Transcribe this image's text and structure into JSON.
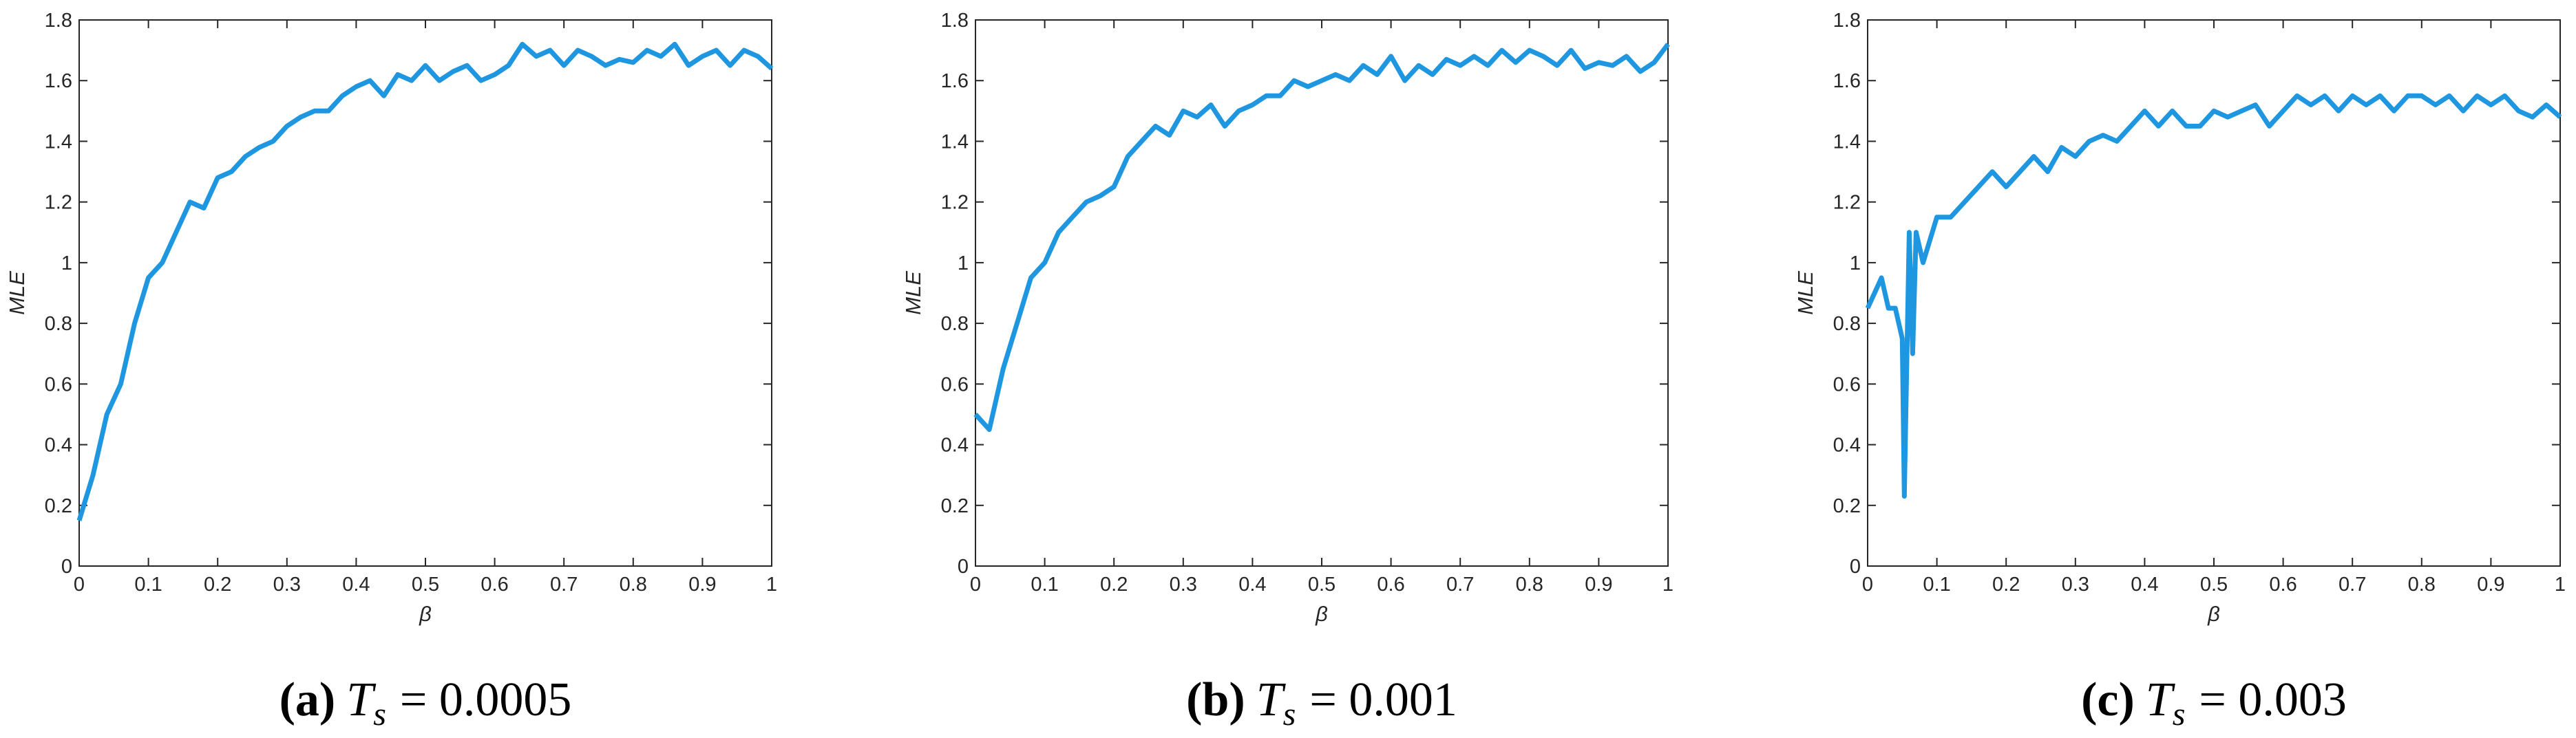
{
  "chart_data": [
    {
      "type": "line",
      "xlabel": "β",
      "ylabel": "MLE",
      "caption_label": "(a)",
      "caption_symbol": "T",
      "caption_subscript": "s",
      "caption_rest": "= 0.0005",
      "color": "#1f96e0",
      "x": [
        0,
        0.02,
        0.04,
        0.06,
        0.08,
        0.1,
        0.12,
        0.14,
        0.16,
        0.18,
        0.2,
        0.22,
        0.24,
        0.26,
        0.28,
        0.3,
        0.32,
        0.34,
        0.36,
        0.38,
        0.4,
        0.42,
        0.44,
        0.46,
        0.48,
        0.5,
        0.52,
        0.54,
        0.56,
        0.58,
        0.6,
        0.62,
        0.64,
        0.66,
        0.68,
        0.7,
        0.72,
        0.74,
        0.76,
        0.78,
        0.8,
        0.82,
        0.84,
        0.86,
        0.88,
        0.9,
        0.92,
        0.94,
        0.96,
        0.98,
        1
      ],
      "values": [
        0.15,
        0.3,
        0.5,
        0.6,
        0.8,
        0.95,
        1.0,
        1.1,
        1.2,
        1.18,
        1.28,
        1.3,
        1.35,
        1.38,
        1.4,
        1.45,
        1.48,
        1.5,
        1.5,
        1.55,
        1.58,
        1.6,
        1.55,
        1.62,
        1.6,
        1.65,
        1.6,
        1.63,
        1.65,
        1.6,
        1.62,
        1.65,
        1.72,
        1.68,
        1.7,
        1.65,
        1.7,
        1.68,
        1.65,
        1.67,
        1.66,
        1.7,
        1.68,
        1.72,
        1.65,
        1.68,
        1.7,
        1.65,
        1.7,
        1.68,
        1.64
      ],
      "xlim": [
        0,
        1
      ],
      "xticks": [
        0,
        0.1,
        0.2,
        0.3,
        0.4,
        0.5,
        0.6,
        0.7,
        0.8,
        0.9,
        1
      ],
      "ylim": [
        0,
        1.8
      ],
      "yticks": [
        0,
        0.2,
        0.4,
        0.6,
        0.8,
        1,
        1.2,
        1.4,
        1.6,
        1.8
      ]
    },
    {
      "type": "line",
      "xlabel": "β",
      "ylabel": "MLE",
      "caption_label": "(b)",
      "caption_symbol": "T",
      "caption_subscript": "s",
      "caption_rest": "= 0.001",
      "color": "#1f96e0",
      "x": [
        0,
        0.02,
        0.04,
        0.06,
        0.08,
        0.1,
        0.12,
        0.14,
        0.16,
        0.18,
        0.2,
        0.22,
        0.24,
        0.26,
        0.28,
        0.3,
        0.32,
        0.34,
        0.36,
        0.38,
        0.4,
        0.42,
        0.44,
        0.46,
        0.48,
        0.5,
        0.52,
        0.54,
        0.56,
        0.58,
        0.6,
        0.62,
        0.64,
        0.66,
        0.68,
        0.7,
        0.72,
        0.74,
        0.76,
        0.78,
        0.8,
        0.82,
        0.84,
        0.86,
        0.88,
        0.9,
        0.92,
        0.94,
        0.96,
        0.98,
        1
      ],
      "values": [
        0.5,
        0.45,
        0.65,
        0.8,
        0.95,
        1.0,
        1.1,
        1.15,
        1.2,
        1.22,
        1.25,
        1.35,
        1.4,
        1.45,
        1.42,
        1.5,
        1.48,
        1.52,
        1.45,
        1.5,
        1.52,
        1.55,
        1.55,
        1.6,
        1.58,
        1.6,
        1.62,
        1.6,
        1.65,
        1.62,
        1.68,
        1.6,
        1.65,
        1.62,
        1.67,
        1.65,
        1.68,
        1.65,
        1.7,
        1.66,
        1.7,
        1.68,
        1.65,
        1.7,
        1.64,
        1.66,
        1.65,
        1.68,
        1.63,
        1.66,
        1.72
      ],
      "xlim": [
        0,
        1
      ],
      "xticks": [
        0,
        0.1,
        0.2,
        0.3,
        0.4,
        0.5,
        0.6,
        0.7,
        0.8,
        0.9,
        1
      ],
      "ylim": [
        0,
        1.8
      ],
      "yticks": [
        0,
        0.2,
        0.4,
        0.6,
        0.8,
        1,
        1.2,
        1.4,
        1.6,
        1.8
      ]
    },
    {
      "type": "line",
      "xlabel": "β",
      "ylabel": "MLE",
      "caption_label": "(c)",
      "caption_symbol": "T",
      "caption_subscript": "s",
      "caption_rest": "= 0.003",
      "color": "#1f96e0",
      "x": [
        0,
        0.01,
        0.02,
        0.03,
        0.04,
        0.05,
        0.053,
        0.06,
        0.065,
        0.07,
        0.08,
        0.1,
        0.12,
        0.14,
        0.16,
        0.18,
        0.2,
        0.22,
        0.24,
        0.26,
        0.28,
        0.3,
        0.32,
        0.34,
        0.36,
        0.38,
        0.4,
        0.42,
        0.44,
        0.46,
        0.48,
        0.5,
        0.52,
        0.54,
        0.56,
        0.58,
        0.6,
        0.62,
        0.64,
        0.66,
        0.68,
        0.7,
        0.72,
        0.74,
        0.76,
        0.78,
        0.8,
        0.82,
        0.84,
        0.86,
        0.88,
        0.9,
        0.92,
        0.94,
        0.96,
        0.98,
        1
      ],
      "values": [
        0.85,
        0.9,
        0.95,
        0.85,
        0.85,
        0.75,
        0.23,
        1.1,
        0.7,
        1.1,
        1.0,
        1.15,
        1.15,
        1.2,
        1.25,
        1.3,
        1.25,
        1.3,
        1.35,
        1.3,
        1.38,
        1.35,
        1.4,
        1.42,
        1.4,
        1.45,
        1.5,
        1.45,
        1.5,
        1.45,
        1.45,
        1.5,
        1.48,
        1.5,
        1.52,
        1.45,
        1.5,
        1.55,
        1.52,
        1.55,
        1.5,
        1.55,
        1.52,
        1.55,
        1.5,
        1.55,
        1.55,
        1.52,
        1.55,
        1.5,
        1.55,
        1.52,
        1.55,
        1.5,
        1.48,
        1.52,
        1.48
      ],
      "xlim": [
        0,
        1
      ],
      "xticks": [
        0,
        0.1,
        0.2,
        0.3,
        0.4,
        0.5,
        0.6,
        0.7,
        0.8,
        0.9,
        1
      ],
      "ylim": [
        0,
        1.8
      ],
      "yticks": [
        0,
        0.2,
        0.4,
        0.6,
        0.8,
        1,
        1.2,
        1.4,
        1.6,
        1.8
      ]
    }
  ]
}
